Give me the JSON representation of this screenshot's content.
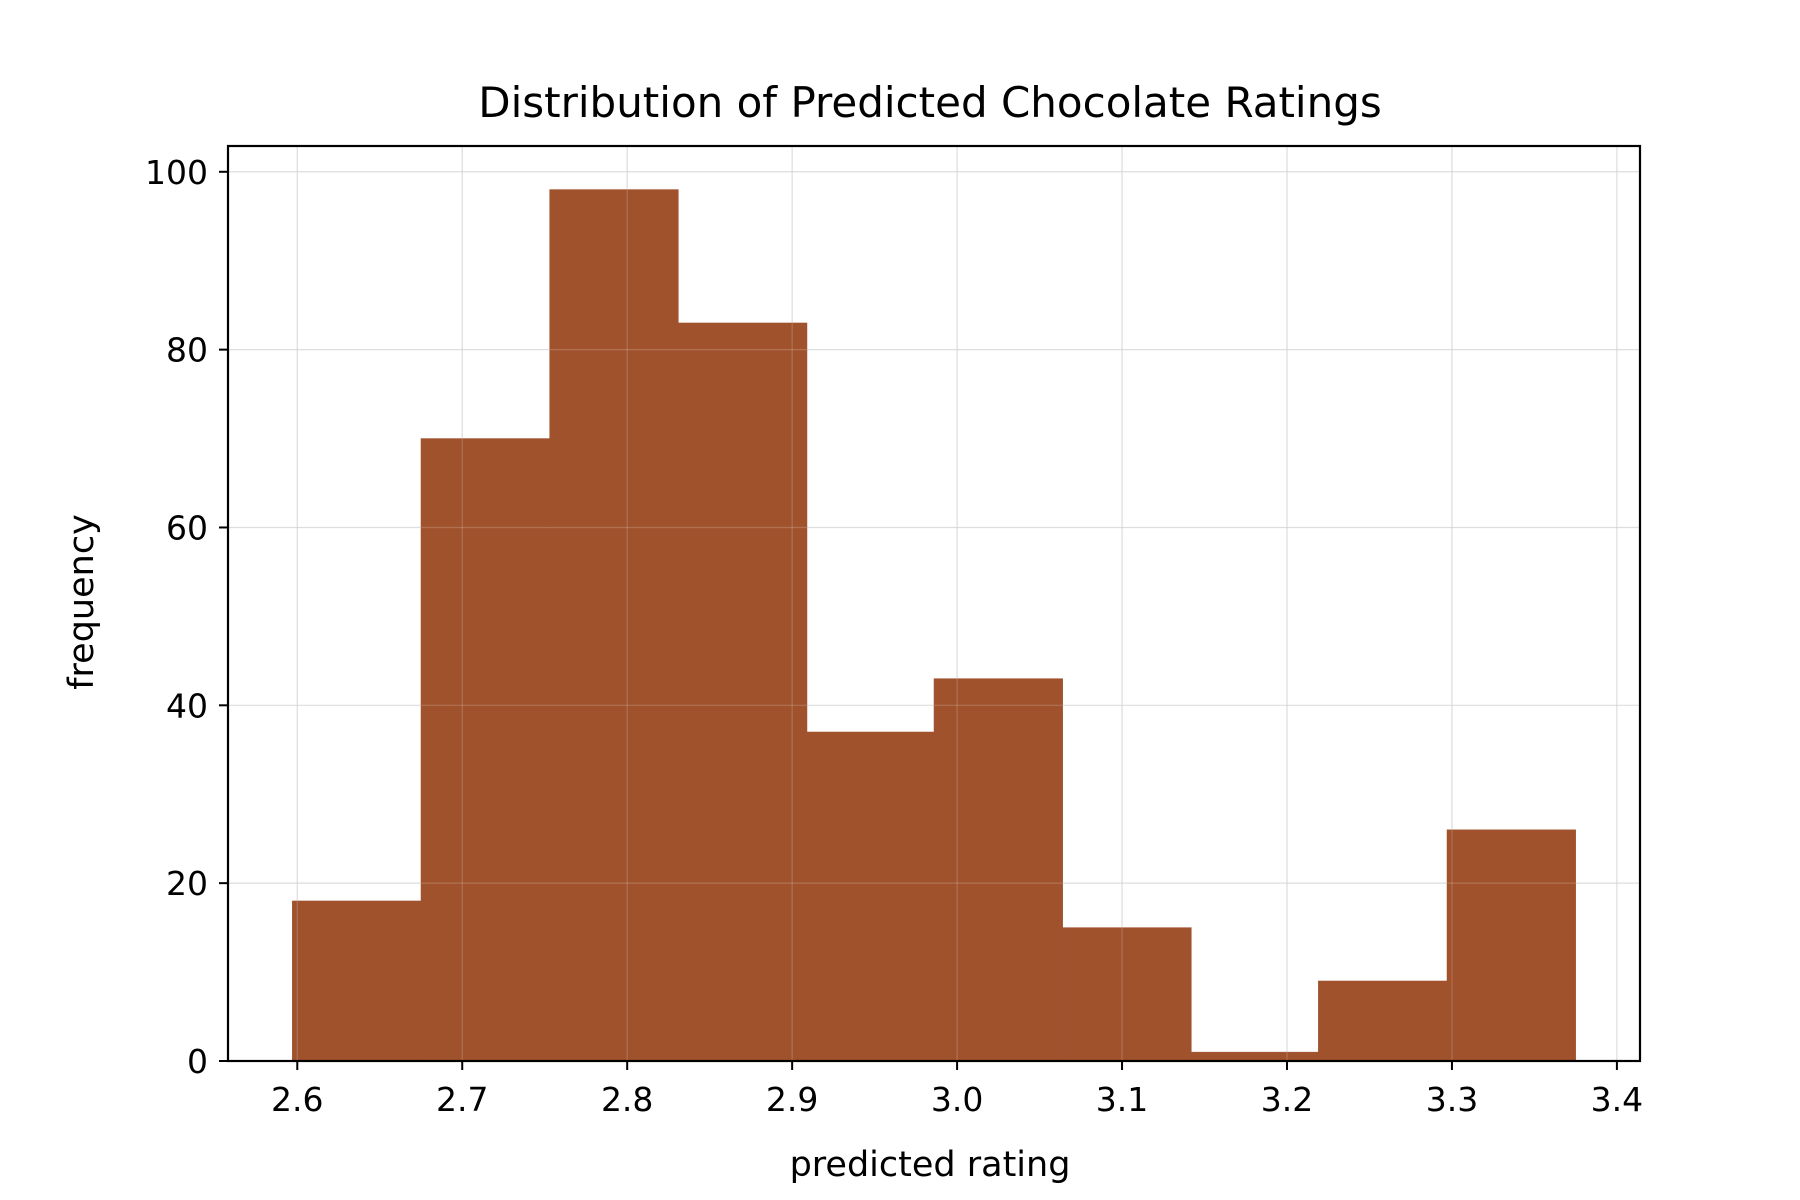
{
  "chart_data": {
    "type": "bar",
    "title": "Distribution of Predicted Chocolate Ratings",
    "xlabel": "predicted rating",
    "ylabel": "frequency",
    "bins": [
      {
        "start": 2.597,
        "end": 2.675,
        "count": 18
      },
      {
        "start": 2.675,
        "end": 2.753,
        "count": 70
      },
      {
        "start": 2.753,
        "end": 2.831,
        "count": 98
      },
      {
        "start": 2.831,
        "end": 2.909,
        "count": 83
      },
      {
        "start": 2.909,
        "end": 2.986,
        "count": 37
      },
      {
        "start": 2.986,
        "end": 3.064,
        "count": 43
      },
      {
        "start": 3.064,
        "end": 3.142,
        "count": 15
      },
      {
        "start": 3.142,
        "end": 3.219,
        "count": 1
      },
      {
        "start": 3.219,
        "end": 3.297,
        "count": 9
      },
      {
        "start": 3.297,
        "end": 3.375,
        "count": 26
      }
    ],
    "xlim": [
      2.558,
      3.414
    ],
    "ylim": [
      0,
      102.9
    ],
    "x_ticks": [
      "2.6",
      "2.7",
      "2.8",
      "2.9",
      "3.0",
      "3.1",
      "3.2",
      "3.3",
      "3.4"
    ],
    "y_ticks": [
      "0",
      "20",
      "40",
      "60",
      "80",
      "100"
    ],
    "grid": true,
    "bar_color": "#a0522d"
  }
}
